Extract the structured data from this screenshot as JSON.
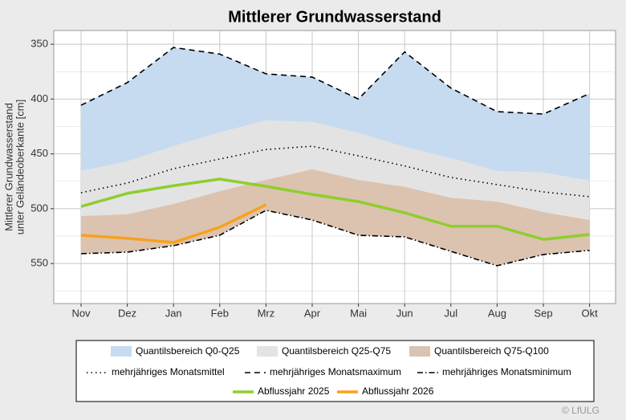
{
  "chart_data": {
    "type": "line",
    "title": "Mittlerer Grundwasserstand",
    "y_label": [
      "Mittlerer Grundwasserstand",
      "unter Geländeoberkante [cm]"
    ],
    "categories": [
      "Nov",
      "Dez",
      "Jan",
      "Feb",
      "Mrz",
      "Apr",
      "Mai",
      "Jun",
      "Jul",
      "Aug",
      "Sep",
      "Okt"
    ],
    "ylim": [
      586.5,
      337.5
    ],
    "yticks": [
      350,
      400,
      450,
      500,
      550
    ],
    "minor_yticks": [
      375,
      425,
      475,
      525,
      575
    ],
    "grid": true,
    "bands": [
      {
        "name": "Quantilsbereich Q0-Q25",
        "color": "#c6dbef",
        "edge1": [
          405.6,
          385,
          353,
          359,
          377,
          380,
          400,
          357,
          390,
          411.5,
          413.7,
          395
        ],
        "edge2": [
          465.7,
          457,
          443,
          430.5,
          419.5,
          421,
          431,
          443.7,
          454,
          465.7,
          467,
          474.5
        ]
      },
      {
        "name": "Quantilsbereich Q25-Q75",
        "color": "#e3e3e3",
        "edge1": [
          465.7,
          457,
          443,
          430.5,
          419.5,
          421,
          431,
          443.7,
          454,
          465.7,
          467,
          474.5
        ],
        "edge2": [
          506.7,
          505,
          495.7,
          484,
          473.7,
          464,
          473.7,
          480,
          490,
          493.5,
          503,
          510.3
        ]
      },
      {
        "name": "Quantilsbereich Q75-Q100",
        "color": "#dcc3b0",
        "edge1": [
          506.7,
          505,
          495.7,
          484,
          473.7,
          464,
          473.7,
          480,
          490,
          493.5,
          503,
          510.3
        ],
        "edge2": [
          541,
          539.6,
          533.7,
          524.2,
          501.5,
          510.3,
          524.2,
          525.7,
          538.9,
          552,
          541.8,
          538
        ]
      }
    ],
    "series": [
      {
        "name": "mehrjähriges Monatsmittel",
        "color": "#000000",
        "dash": "1.5 4",
        "values": [
          485.4,
          476.6,
          463.5,
          454.7,
          446,
          443,
          451.8,
          461,
          471.5,
          478,
          484.7,
          489
        ]
      },
      {
        "name": "mehrjähriges Monatsmaximum",
        "color": "#000000",
        "dash": "7 5",
        "values": [
          405.6,
          385,
          353,
          359,
          377,
          380,
          400,
          357,
          390,
          411.5,
          413.7,
          395
        ]
      },
      {
        "name": "mehrjähriges Monatsminimum",
        "color": "#000000",
        "dash": "7 3 1.5 3",
        "values": [
          541,
          539.6,
          533.7,
          524.2,
          501.5,
          510.3,
          524.2,
          525.7,
          538.9,
          552,
          541.8,
          538
        ]
      },
      {
        "name": "Abflussjahr 2025",
        "color": "#8fce2e",
        "width": 3.5,
        "values": [
          498,
          486,
          479,
          473,
          479.6,
          487,
          493.5,
          503.7,
          516,
          516,
          528,
          523.5
        ]
      },
      {
        "name": "Abflussjahr 2026",
        "color": "#f7a21b",
        "width": 3.5,
        "values": [
          524.2,
          527,
          530.8,
          516.9,
          496.4,
          null,
          null,
          null,
          null,
          null,
          null,
          null
        ]
      }
    ],
    "credit": "© LfULG"
  }
}
